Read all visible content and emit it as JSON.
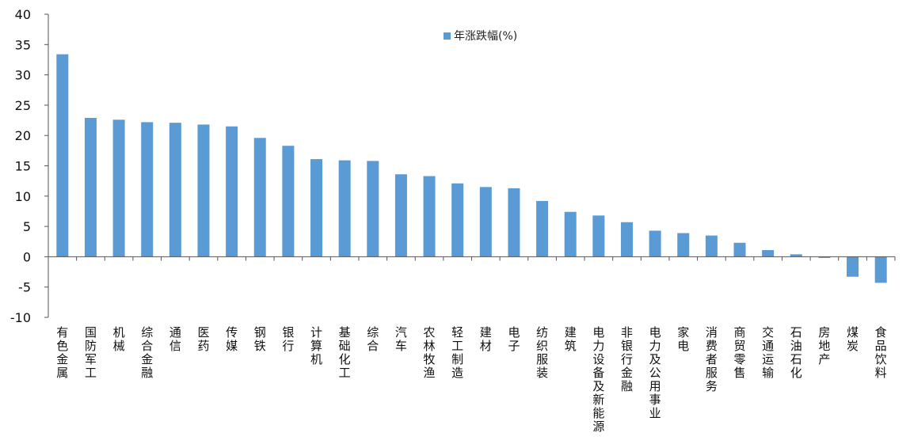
{
  "chart_data": {
    "type": "bar",
    "title": "",
    "xlabel": "",
    "ylabel": "",
    "ylim": [
      -10,
      40
    ],
    "yticks": [
      -10,
      -5,
      0,
      5,
      10,
      15,
      20,
      25,
      30,
      35,
      40
    ],
    "grid": false,
    "legend_position": "top-center",
    "bar_color": "#5b9bd5",
    "categories": [
      "有色金属",
      "国防军工",
      "机械",
      "综合金融",
      "通信",
      "医药",
      "传媒",
      "钢铁",
      "银行",
      "计算机",
      "基础化工",
      "综合",
      "汽车",
      "农林牧渔",
      "轻工制造",
      "建材",
      "电子",
      "纺织服装",
      "建筑",
      "电力设备及新能源",
      "非银行金融",
      "电力及公用事业",
      "家电",
      "消费者服务",
      "商贸零售",
      "交通运输",
      "石油石化",
      "房地产",
      "煤炭",
      "食品饮料"
    ],
    "series": [
      {
        "name": "年涨跌幅(%)",
        "values": [
          33.4,
          22.9,
          22.6,
          22.2,
          22.1,
          21.8,
          21.5,
          19.6,
          18.3,
          16.1,
          15.9,
          15.8,
          13.6,
          13.3,
          12.1,
          11.5,
          11.3,
          9.2,
          7.4,
          6.8,
          5.7,
          4.3,
          3.9,
          3.5,
          2.3,
          1.1,
          0.4,
          -0.2,
          -3.3,
          -4.3
        ]
      }
    ]
  }
}
